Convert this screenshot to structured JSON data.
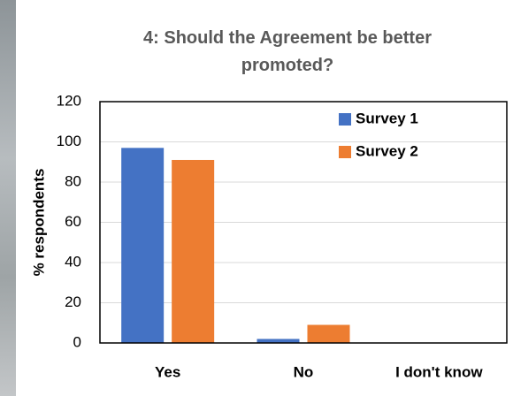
{
  "chart_data": {
    "type": "bar",
    "title": "4: Should the Agreement be better promoted?",
    "y_label": "% respondents",
    "categories": [
      "Yes",
      "No",
      "I don't know"
    ],
    "series": [
      {
        "name": "Survey 1",
        "color": "#4472c4",
        "values": [
          97,
          2,
          0
        ]
      },
      {
        "name": "Survey 2",
        "color": "#ed7d31",
        "values": [
          91,
          9,
          0
        ]
      }
    ],
    "ylim": [
      0,
      120
    ],
    "yticks": [
      0,
      20,
      40,
      60,
      80,
      100,
      120
    ],
    "grid": true,
    "legend": "upper right"
  }
}
